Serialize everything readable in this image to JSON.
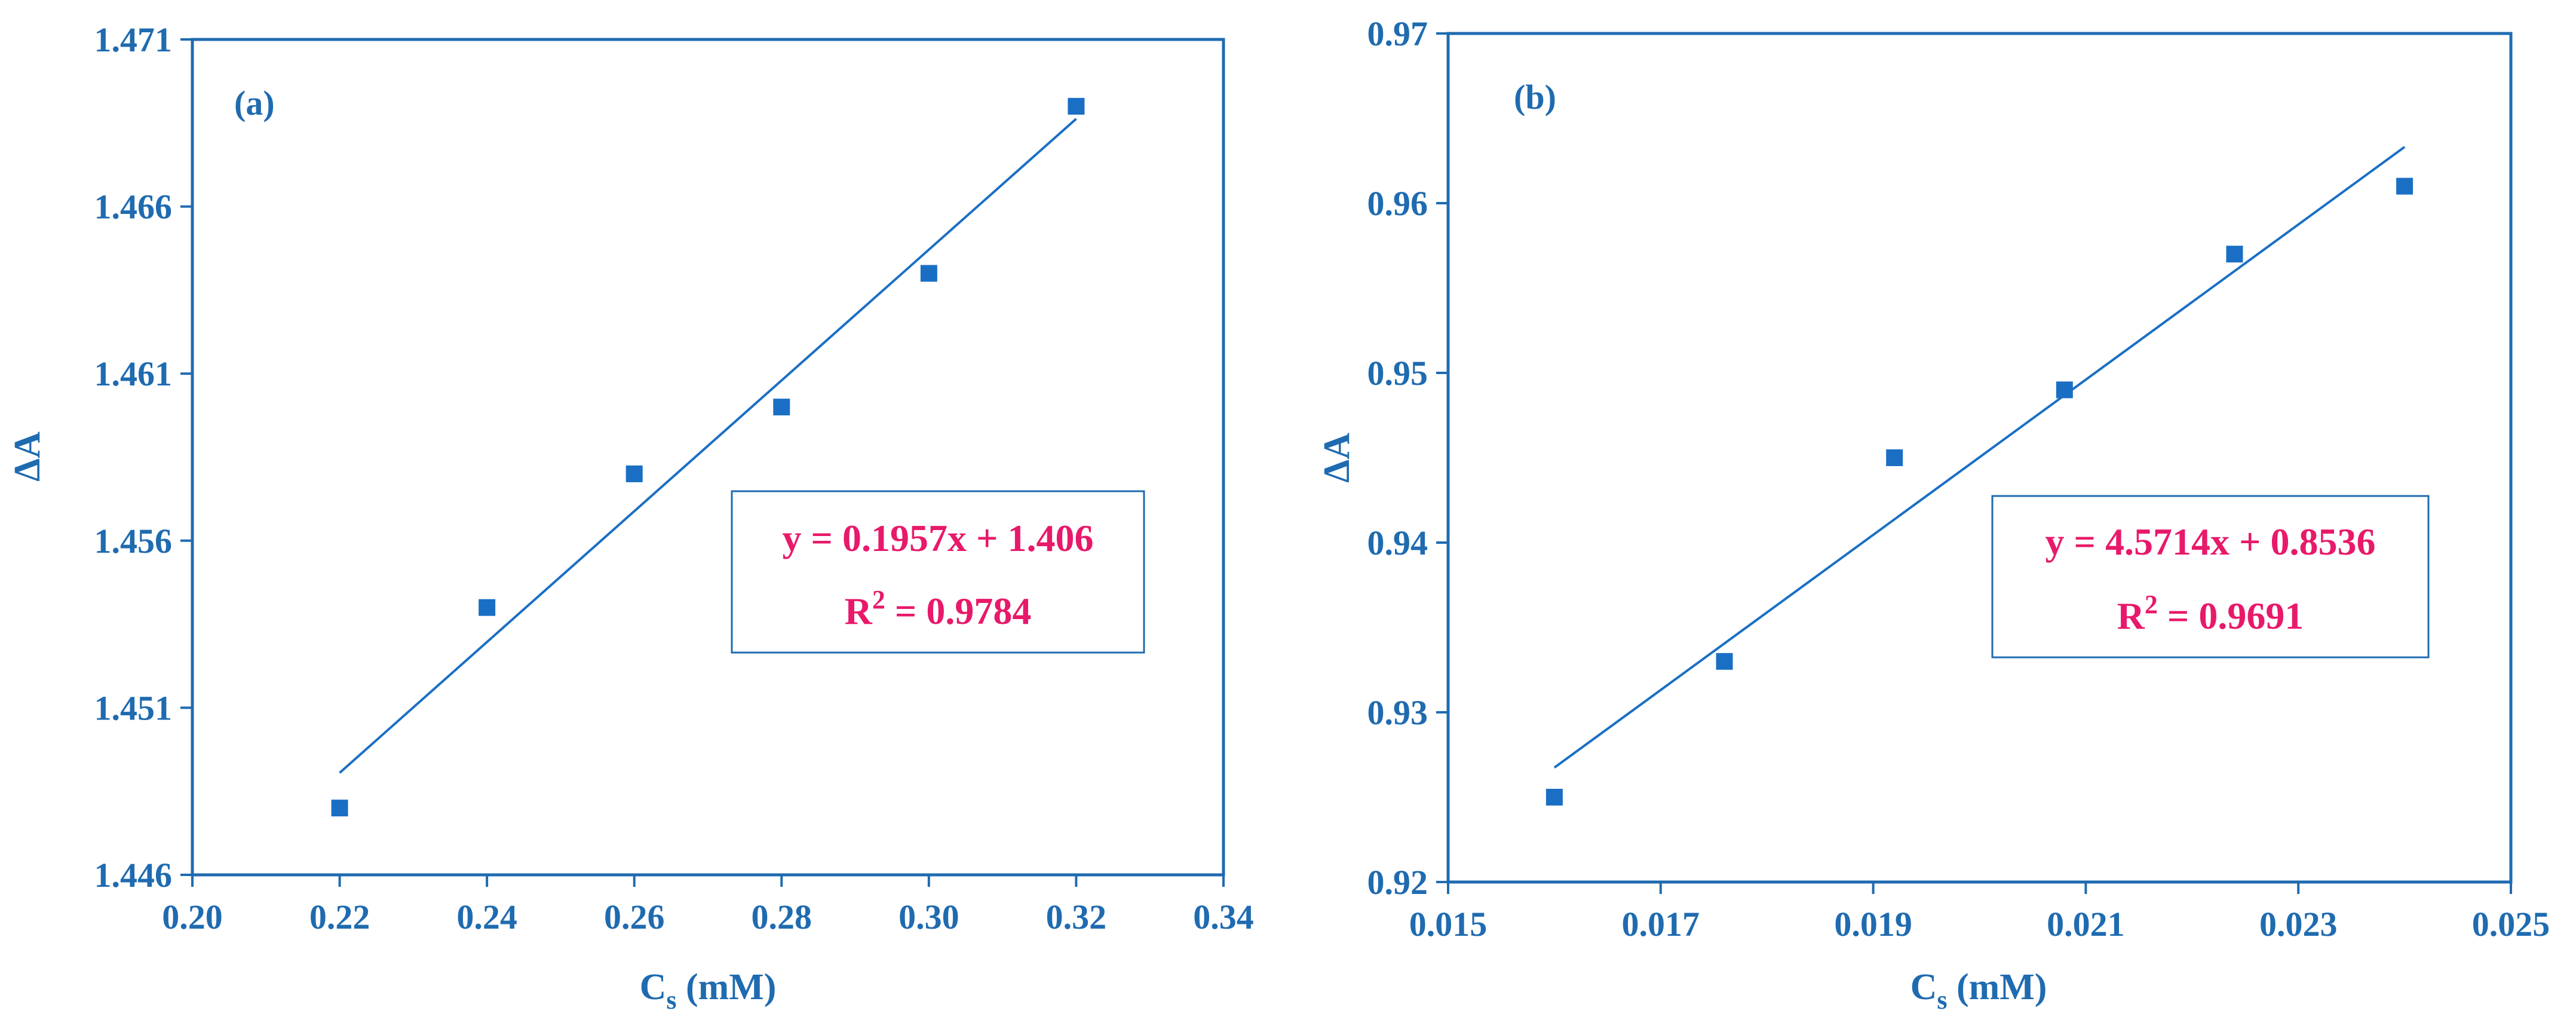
{
  "colors": {
    "axis": "#1f6bb0",
    "marker": "#1a6fc4",
    "fit_line": "#1a6fc4",
    "equation_text": "#e8196a"
  },
  "chart_data": [
    {
      "type": "scatter",
      "panel_label": "(a)",
      "xlabel_main": "C",
      "xlabel_sub": "s",
      "xlabel_unit": " (mM)",
      "ylabel": "ΔA",
      "xlim": [
        0.2,
        0.34
      ],
      "ylim": [
        1.446,
        1.471
      ],
      "xticks": [
        "0.20",
        "0.22",
        "0.24",
        "0.26",
        "0.28",
        "0.30",
        "0.32",
        "0.34"
      ],
      "yticks": [
        "1.446",
        "1.451",
        "1.456",
        "1.461",
        "1.466",
        "1.471"
      ],
      "points": [
        {
          "x": 0.22,
          "y": 1.448
        },
        {
          "x": 0.24,
          "y": 1.454
        },
        {
          "x": 0.26,
          "y": 1.458
        },
        {
          "x": 0.28,
          "y": 1.46
        },
        {
          "x": 0.3,
          "y": 1.464
        },
        {
          "x": 0.32,
          "y": 1.469
        }
      ],
      "fit": {
        "slope": 0.1957,
        "intercept": 1.406,
        "x_from": 0.22,
        "x_to": 0.32
      },
      "equation": "y = 0.1957x + 1.406",
      "r2_label": "R",
      "r2_sup": "2",
      "r2_value": " = 0.9784"
    },
    {
      "type": "scatter",
      "panel_label": "(b)",
      "xlabel_main": "C",
      "xlabel_sub": "s",
      "xlabel_unit": " (mM)",
      "ylabel": "ΔA",
      "xlim": [
        0.015,
        0.025
      ],
      "ylim": [
        0.92,
        0.97
      ],
      "xticks": [
        "0.015",
        "0.017",
        "0.019",
        "0.021",
        "0.023",
        "0.025"
      ],
      "yticks": [
        "0.92",
        "0.93",
        "0.94",
        "0.95",
        "0.96",
        "0.97"
      ],
      "points": [
        {
          "x": 0.016,
          "y": 0.925
        },
        {
          "x": 0.0176,
          "y": 0.933
        },
        {
          "x": 0.0192,
          "y": 0.945
        },
        {
          "x": 0.0208,
          "y": 0.949
        },
        {
          "x": 0.0224,
          "y": 0.957
        },
        {
          "x": 0.024,
          "y": 0.961
        }
      ],
      "fit": {
        "slope": 4.5714,
        "intercept": 0.8536,
        "x_from": 0.016,
        "x_to": 0.024
      },
      "equation": "y = 4.5714x + 0.8536",
      "r2_label": "R",
      "r2_sup": "2",
      "r2_value": " = 0.9691"
    }
  ]
}
